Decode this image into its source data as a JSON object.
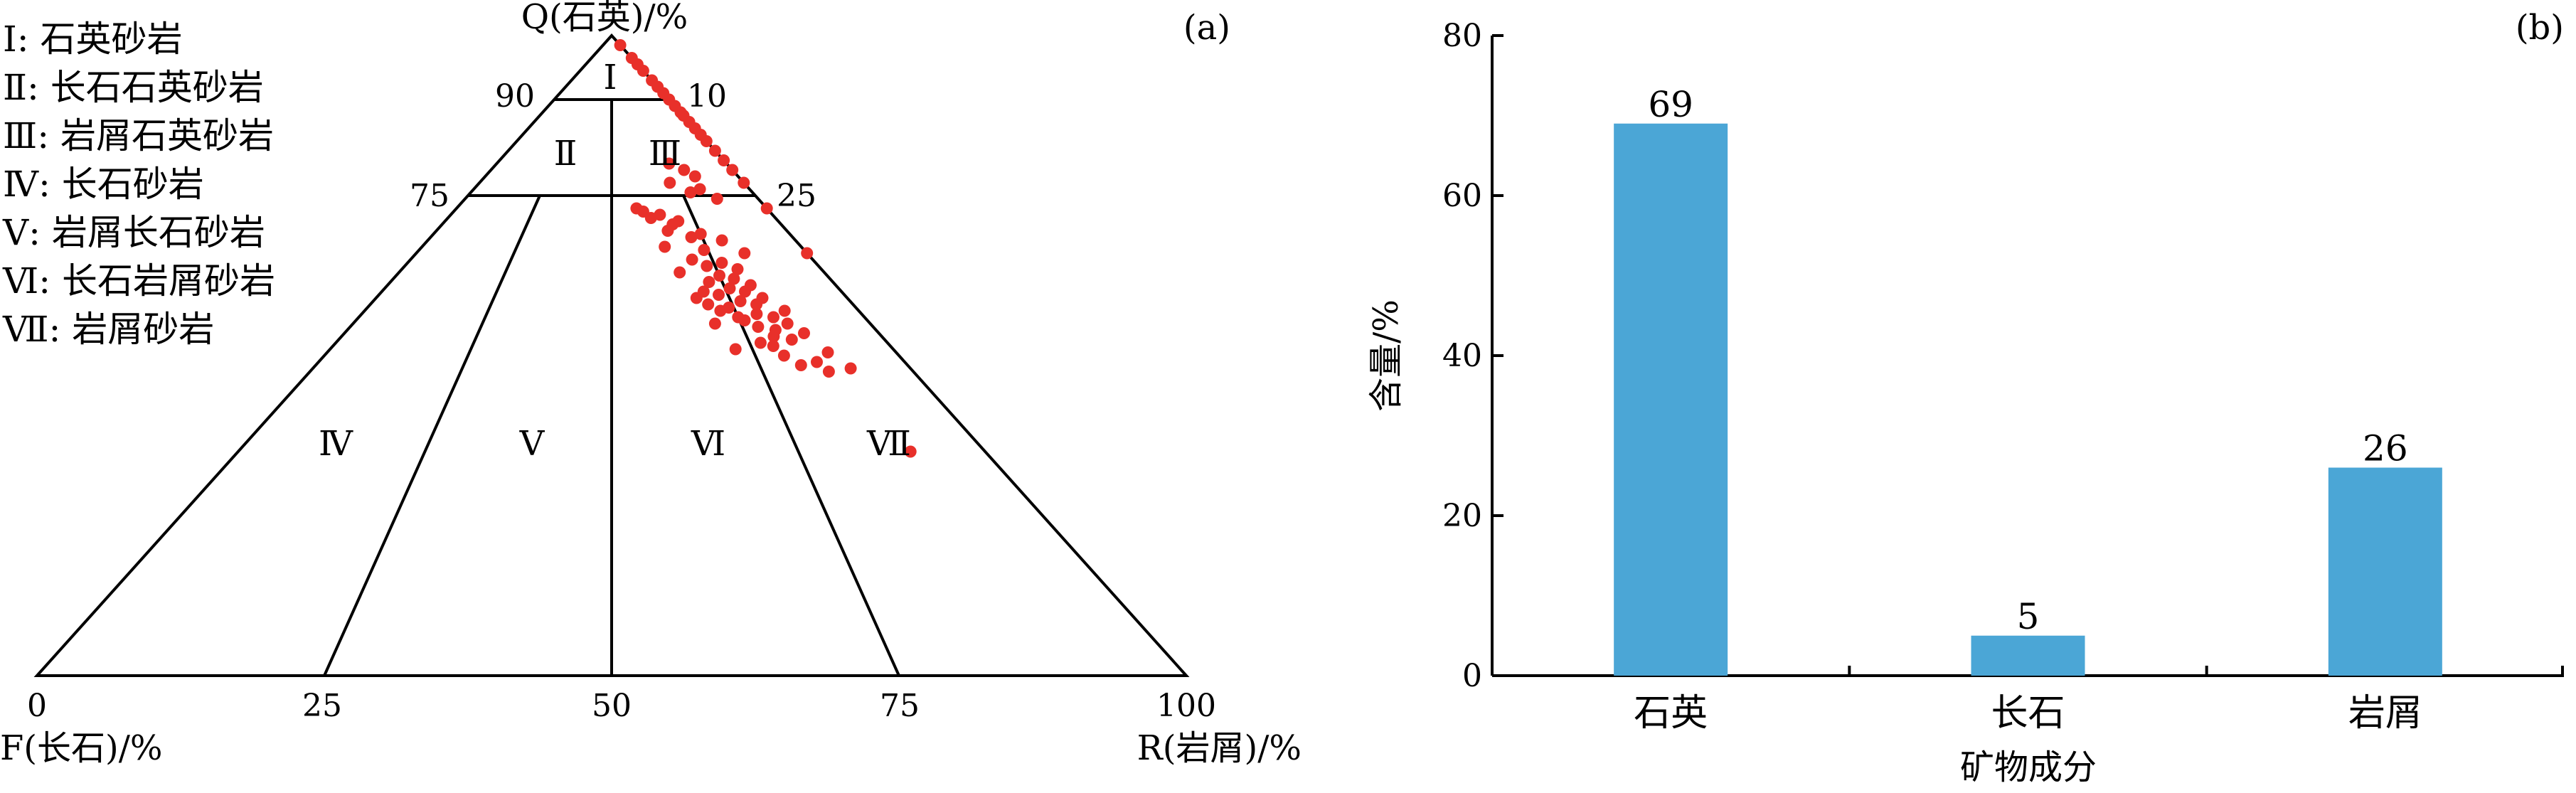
{
  "chart_data": [
    {
      "type": "scatter",
      "panel_tag": "(a)",
      "legend": [
        "Ⅰ: 石英砂岩",
        "Ⅱ: 长石石英砂岩",
        "Ⅲ: 岩屑石英砂岩",
        "Ⅳ: 长石砂岩",
        "Ⅴ: 岩屑长石砂岩",
        "Ⅵ: 长石岩屑砂岩",
        "Ⅶ: 岩屑砂岩"
      ],
      "axes": {
        "apex_label": "Q(石英)/%",
        "left_label": "F(长石)/%",
        "right_label": "R(岩屑)/%"
      },
      "ticks": {
        "left_edge": [
          "90",
          "75"
        ],
        "right_edge": [
          "10",
          "25"
        ],
        "base": [
          "0",
          "25",
          "50",
          "75",
          "100"
        ]
      },
      "zones": [
        "Ⅰ",
        "Ⅱ",
        "Ⅲ",
        "Ⅳ",
        "Ⅴ",
        "Ⅵ",
        "Ⅶ"
      ],
      "point_color": "#e8302a",
      "points": [
        {
          "q": 98.5,
          "fr": 100
        },
        {
          "q": 96.5,
          "fr": 100
        },
        {
          "q": 95.5,
          "fr": 100
        },
        {
          "q": 94.5,
          "fr": 100
        },
        {
          "q": 93.0,
          "fr": 100
        },
        {
          "q": 92.0,
          "fr": 100
        },
        {
          "q": 91.0,
          "fr": 100
        },
        {
          "q": 90.0,
          "fr": 100
        },
        {
          "q": 89.0,
          "fr": 100
        },
        {
          "q": 88.0,
          "fr": 100
        },
        {
          "q": 87.5,
          "fr": 100
        },
        {
          "q": 86.5,
          "fr": 100
        },
        {
          "q": 85.5,
          "fr": 100
        },
        {
          "q": 84.5,
          "fr": 100
        },
        {
          "q": 83.5,
          "fr": 100
        },
        {
          "q": 82.0,
          "fr": 100
        },
        {
          "q": 80.5,
          "fr": 100
        },
        {
          "q": 79.0,
          "fr": 100
        },
        {
          "q": 77.0,
          "fr": 100
        },
        {
          "q": 73.0,
          "fr": 100
        },
        {
          "q": 66.0,
          "fr": 100
        },
        {
          "q": 80.0,
          "fr": 75
        },
        {
          "q": 79.0,
          "fr": 80
        },
        {
          "q": 78.0,
          "fr": 83
        },
        {
          "q": 77.0,
          "fr": 72
        },
        {
          "q": 76.0,
          "fr": 82
        },
        {
          "q": 75.5,
          "fr": 78
        },
        {
          "q": 74.5,
          "fr": 86
        },
        {
          "q": 73.0,
          "fr": 58
        },
        {
          "q": 72.5,
          "fr": 60
        },
        {
          "q": 72.0,
          "fr": 65
        },
        {
          "q": 71.5,
          "fr": 62
        },
        {
          "q": 71.0,
          "fr": 70
        },
        {
          "q": 70.5,
          "fr": 68
        },
        {
          "q": 69.5,
          "fr": 66
        },
        {
          "q": 69.0,
          "fr": 75
        },
        {
          "q": 68.5,
          "fr": 72
        },
        {
          "q": 68.0,
          "fr": 80
        },
        {
          "q": 67.0,
          "fr": 64
        },
        {
          "q": 66.5,
          "fr": 74
        },
        {
          "q": 66.0,
          "fr": 84
        },
        {
          "q": 65.0,
          "fr": 70
        },
        {
          "q": 64.5,
          "fr": 77
        },
        {
          "q": 64.0,
          "fr": 73
        },
        {
          "q": 63.5,
          "fr": 80
        },
        {
          "q": 63.0,
          "fr": 66
        },
        {
          "q": 62.5,
          "fr": 75
        },
        {
          "q": 62.0,
          "fr": 78
        },
        {
          "q": 61.5,
          "fr": 72
        },
        {
          "q": 61.0,
          "fr": 81
        },
        {
          "q": 60.5,
          "fr": 76
        },
        {
          "q": 60.0,
          "fr": 79
        },
        {
          "q": 59.5,
          "fr": 73
        },
        {
          "q": 59.0,
          "fr": 82
        },
        {
          "q": 58.5,
          "fr": 77
        },
        {
          "q": 58.0,
          "fr": 80
        },
        {
          "q": 57.5,
          "fr": 74
        },
        {
          "q": 57.0,
          "fr": 85
        },
        {
          "q": 56.5,
          "fr": 79
        },
        {
          "q": 56.0,
          "fr": 82
        },
        {
          "q": 55.5,
          "fr": 76
        },
        {
          "q": 55.0,
          "fr": 84
        },
        {
          "q": 54.5,
          "fr": 78
        },
        {
          "q": 54.0,
          "fr": 81
        },
        {
          "q": 53.5,
          "fr": 86
        },
        {
          "q": 53.0,
          "fr": 80
        },
        {
          "q": 52.5,
          "fr": 83
        },
        {
          "q": 52.0,
          "fr": 77
        },
        {
          "q": 51.5,
          "fr": 79
        },
        {
          "q": 51.0,
          "fr": 72
        },
        {
          "q": 50.5,
          "fr": 88
        },
        {
          "q": 50.0,
          "fr": 80
        },
        {
          "q": 49.0,
          "fr": 85
        },
        {
          "q": 48.5,
          "fr": 82
        },
        {
          "q": 48.0,
          "fr": 90
        },
        {
          "q": 47.5,
          "fr": 86
        },
        {
          "q": 58.0,
          "fr": 70
        },
        {
          "q": 57.0,
          "fr": 72
        },
        {
          "q": 56.0,
          "fr": 75
        },
        {
          "q": 55.0,
          "fr": 70
        },
        {
          "q": 59.0,
          "fr": 68
        },
        {
          "q": 60.0,
          "fr": 70
        },
        {
          "q": 35.0,
          "fr": 90
        }
      ]
    },
    {
      "type": "bar",
      "panel_tag": "(b)",
      "categories": [
        "石英",
        "长石",
        "岩屑"
      ],
      "values": [
        69,
        5,
        26
      ],
      "value_labels": [
        "69",
        "5",
        "26"
      ],
      "xlabel": "矿物成分",
      "ylabel": "含量/%",
      "ylim": [
        0,
        80
      ],
      "yticks": [
        0,
        20,
        40,
        60,
        80
      ],
      "ytick_labels": [
        "0",
        "20",
        "40",
        "60",
        "80"
      ],
      "bar_color": "#4ba6d6"
    }
  ]
}
